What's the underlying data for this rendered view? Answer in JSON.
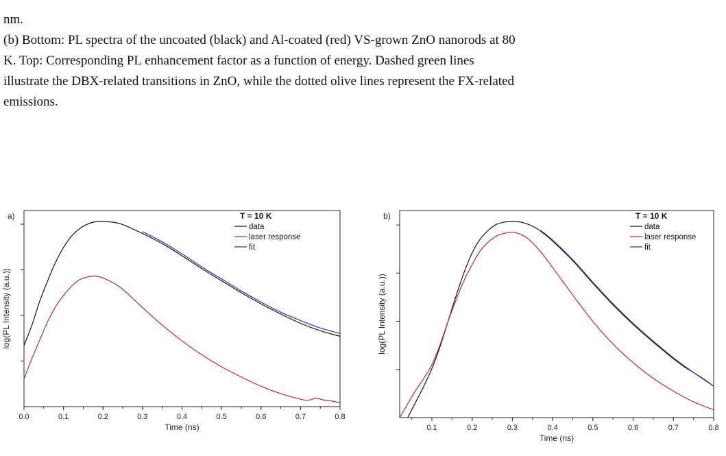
{
  "caption": {
    "lines": [
      "nm.",
      " (b) Bottom: PL spectra of the uncoated (black) and Al-coated (red) VS-grown ZnO nanorods at 80",
      "K. Top: Corresponding PL enhancement factor as a function of energy. Dashed green lines",
      "illustrate the DBX-related transitions in ZnO, while the dotted olive lines represent the FX-related",
      "emissions."
    ]
  },
  "chart_data": [
    {
      "type": "line",
      "panel_label": "a)",
      "xlabel": "Time (ns)",
      "ylabel": "log(PL Intensity (a.u.))",
      "xlim": [
        0.0,
        0.8
      ],
      "ylim": [
        0.0,
        1.0
      ],
      "x_ticks": [
        "0.0",
        "0.1",
        "0.2",
        "0.3",
        "0.4",
        "0.5",
        "0.6",
        "0.7",
        "0.8"
      ],
      "y_ticks_labeled": false,
      "legend": {
        "title": "T = 10 K",
        "position": "top-right"
      },
      "colors": {
        "data": "#111111",
        "laser response": "#c0282a",
        "fit": "#2a30b0"
      },
      "series": [
        {
          "name": "data",
          "x": [
            0.0,
            0.02,
            0.04,
            0.06,
            0.08,
            0.1,
            0.12,
            0.14,
            0.16,
            0.18,
            0.2,
            0.22,
            0.24,
            0.26,
            0.28,
            0.3,
            0.35,
            0.4,
            0.45,
            0.5,
            0.55,
            0.6,
            0.65,
            0.7,
            0.75,
            0.8
          ],
          "values": [
            0.33,
            0.44,
            0.57,
            0.68,
            0.78,
            0.86,
            0.92,
            0.96,
            0.985,
            0.998,
            1.0,
            0.997,
            0.99,
            0.975,
            0.955,
            0.935,
            0.88,
            0.815,
            0.745,
            0.68,
            0.615,
            0.555,
            0.5,
            0.45,
            0.41,
            0.38
          ]
        },
        {
          "name": "laser response",
          "x": [
            0.0,
            0.02,
            0.04,
            0.06,
            0.08,
            0.1,
            0.12,
            0.14,
            0.16,
            0.18,
            0.2,
            0.22,
            0.24,
            0.26,
            0.28,
            0.3,
            0.35,
            0.4,
            0.45,
            0.5,
            0.55,
            0.6,
            0.65,
            0.7,
            0.72,
            0.74,
            0.76,
            0.78,
            0.8
          ],
          "values": [
            0.15,
            0.26,
            0.36,
            0.46,
            0.54,
            0.6,
            0.65,
            0.685,
            0.7,
            0.705,
            0.695,
            0.675,
            0.65,
            0.615,
            0.575,
            0.535,
            0.44,
            0.355,
            0.28,
            0.215,
            0.16,
            0.11,
            0.07,
            0.04,
            0.035,
            0.045,
            0.035,
            0.03,
            0.02
          ]
        },
        {
          "name": "fit",
          "x": [
            0.3,
            0.35,
            0.4,
            0.45,
            0.5,
            0.55,
            0.6,
            0.65,
            0.7,
            0.75,
            0.8
          ],
          "values": [
            0.945,
            0.89,
            0.825,
            0.755,
            0.69,
            0.625,
            0.565,
            0.51,
            0.465,
            0.425,
            0.395
          ]
        }
      ]
    },
    {
      "type": "line",
      "panel_label": "b)",
      "xlabel": "Time (ns)",
      "ylabel": "log(PL Intensity (a.u.))",
      "xlim": [
        0.02,
        0.8
      ],
      "ylim": [
        0.0,
        1.0
      ],
      "x_ticks": [
        "0.1",
        "0.2",
        "0.3",
        "0.4",
        "0.5",
        "0.6",
        "0.7",
        "0.8"
      ],
      "y_ticks_labeled": false,
      "legend": {
        "title": "T = 10 K",
        "position": "top-right"
      },
      "colors": {
        "data": "#111111",
        "laser response": "#c0282a",
        "fit": "#2a30b0"
      },
      "series": [
        {
          "name": "data",
          "x": [
            0.04,
            0.06,
            0.08,
            0.1,
            0.12,
            0.14,
            0.16,
            0.18,
            0.2,
            0.22,
            0.24,
            0.26,
            0.28,
            0.3,
            0.32,
            0.34,
            0.36,
            0.38,
            0.4,
            0.45,
            0.5,
            0.55,
            0.6,
            0.65,
            0.7,
            0.73,
            0.75,
            0.78,
            0.8
          ],
          "values": [
            0.0,
            0.08,
            0.16,
            0.25,
            0.36,
            0.49,
            0.62,
            0.74,
            0.84,
            0.91,
            0.955,
            0.985,
            0.997,
            1.0,
            0.997,
            0.985,
            0.965,
            0.935,
            0.9,
            0.8,
            0.685,
            0.575,
            0.475,
            0.385,
            0.3,
            0.255,
            0.23,
            0.19,
            0.16
          ]
        },
        {
          "name": "laser response",
          "x": [
            0.02,
            0.04,
            0.06,
            0.08,
            0.1,
            0.12,
            0.14,
            0.16,
            0.18,
            0.2,
            0.22,
            0.24,
            0.26,
            0.28,
            0.3,
            0.32,
            0.34,
            0.36,
            0.38,
            0.4,
            0.45,
            0.5,
            0.55,
            0.6,
            0.65,
            0.7,
            0.75,
            0.8
          ],
          "values": [
            0.0,
            0.07,
            0.14,
            0.2,
            0.27,
            0.37,
            0.49,
            0.6,
            0.7,
            0.78,
            0.85,
            0.895,
            0.925,
            0.94,
            0.945,
            0.935,
            0.91,
            0.87,
            0.82,
            0.765,
            0.625,
            0.49,
            0.375,
            0.28,
            0.2,
            0.135,
            0.08,
            0.04
          ]
        },
        {
          "name": "fit",
          "x": [
            0.37,
            0.4,
            0.45,
            0.5,
            0.55,
            0.6,
            0.65,
            0.7,
            0.75,
            0.8
          ],
          "values": [
            0.955,
            0.905,
            0.805,
            0.69,
            0.58,
            0.48,
            0.39,
            0.305,
            0.23,
            0.16
          ]
        }
      ]
    }
  ]
}
